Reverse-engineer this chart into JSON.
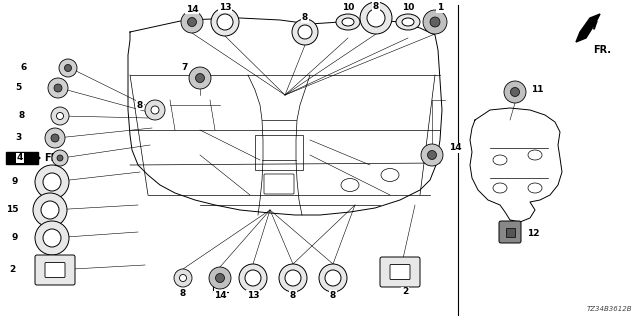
{
  "bg_color": "#ffffff",
  "diagram_code": "TZ34B3612B",
  "figsize": [
    6.4,
    3.2
  ],
  "dpi": 100
}
